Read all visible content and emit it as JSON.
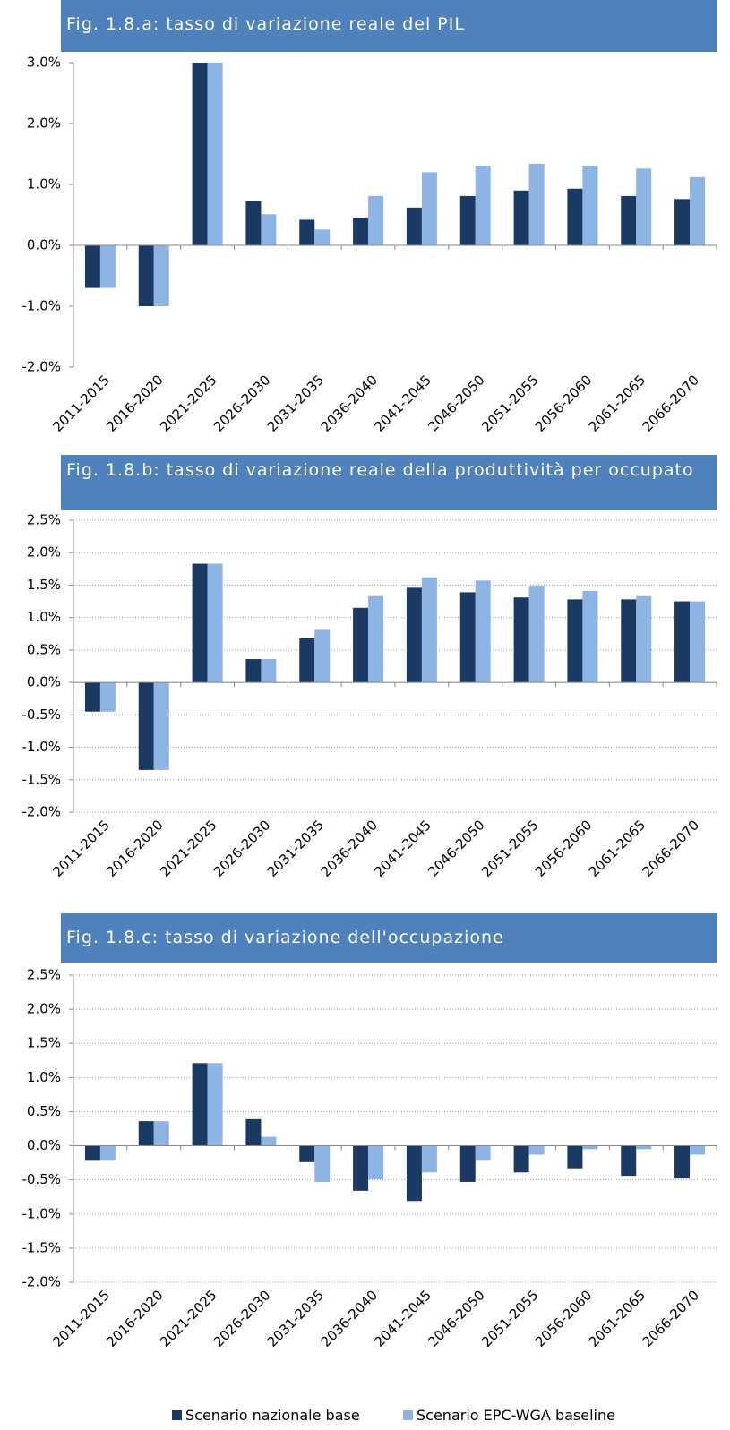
{
  "legend": [
    {
      "name": "Scenario nazionale base",
      "color": "#1b3a63"
    },
    {
      "name": "Scenario EPC-WGA baseline",
      "color": "#8db4e2"
    }
  ],
  "chart_data": [
    {
      "type": "bar",
      "title": "Fig. 1.8.a: tasso di variazione reale del PIL",
      "grid": false,
      "categories": [
        "2011-2015",
        "2016-2020",
        "2021-2025",
        "2026-2030",
        "2031-2035",
        "2036-2040",
        "2041-2045",
        "2046-2050",
        "2051-2055",
        "2056-2060",
        "2061-2065",
        "2066-2070"
      ],
      "series": [
        {
          "values": [
            -0.7,
            -1.0,
            3.0,
            0.73,
            0.42,
            0.45,
            0.62,
            0.81,
            0.9,
            0.93,
            0.81,
            0.76
          ]
        },
        {
          "values": [
            -0.7,
            -1.0,
            3.0,
            0.51,
            0.26,
            0.81,
            1.2,
            1.31,
            1.34,
            1.31,
            1.26,
            1.12
          ]
        }
      ],
      "ylim": [
        -2,
        3
      ],
      "yticks": [
        {
          "value": -2,
          "label": "-2.0%"
        },
        {
          "value": -1,
          "label": "-1.0%"
        },
        {
          "value": 0,
          "label": "0.0%"
        },
        {
          "value": 1,
          "label": "1.0%"
        },
        {
          "value": 2,
          "label": "2.0%"
        },
        {
          "value": 3,
          "label": "3.0%"
        }
      ]
    },
    {
      "type": "bar",
      "title": "Fig. 1.8.b: tasso di variazione reale della produttività per occupato",
      "grid": true,
      "categories": [
        "2011-2015",
        "2016-2020",
        "2021-2025",
        "2026-2030",
        "2031-2035",
        "2036-2040",
        "2041-2045",
        "2046-2050",
        "2051-2055",
        "2056-2060",
        "2061-2065",
        "2066-2070"
      ],
      "series": [
        {
          "values": [
            -0.45,
            -1.35,
            1.83,
            0.36,
            0.68,
            1.15,
            1.46,
            1.39,
            1.31,
            1.28,
            1.28,
            1.25
          ]
        },
        {
          "values": [
            -0.45,
            -1.35,
            1.83,
            0.36,
            0.81,
            1.33,
            1.62,
            1.57,
            1.49,
            1.41,
            1.33,
            1.25
          ]
        }
      ],
      "ylim": [
        -2,
        2.5
      ],
      "yticks": [
        {
          "value": -2,
          "label": "-2.0%"
        },
        {
          "value": -1.5,
          "label": "-1.5%"
        },
        {
          "value": -1,
          "label": "-1.0%"
        },
        {
          "value": -0.5,
          "label": "-0.5%"
        },
        {
          "value": 0,
          "label": "0.0%"
        },
        {
          "value": 0.5,
          "label": "0.5%"
        },
        {
          "value": 1,
          "label": "1.0%"
        },
        {
          "value": 1.5,
          "label": "1.5%"
        },
        {
          "value": 2,
          "label": "2.0%"
        },
        {
          "value": 2.5,
          "label": "2.5%"
        }
      ]
    },
    {
      "type": "bar",
      "title": "Fig. 1.8.c: tasso di variazione dell'occupazione",
      "grid": true,
      "categories": [
        "2011-2015",
        "2016-2020",
        "2021-2025",
        "2026-2030",
        "2031-2035",
        "2036-2040",
        "2041-2045",
        "2046-2050",
        "2051-2055",
        "2056-2060",
        "2061-2065",
        "2066-2070"
      ],
      "series": [
        {
          "values": [
            -0.22,
            0.36,
            1.21,
            0.39,
            -0.24,
            -0.66,
            -0.81,
            -0.53,
            -0.39,
            -0.33,
            -0.44,
            -0.48
          ]
        },
        {
          "values": [
            -0.22,
            0.36,
            1.21,
            0.13,
            -0.53,
            -0.49,
            -0.39,
            -0.22,
            -0.13,
            -0.05,
            -0.05,
            -0.13
          ]
        }
      ],
      "ylim": [
        -2,
        2.5
      ],
      "yticks": [
        {
          "value": -2,
          "label": "-2.0%"
        },
        {
          "value": -1.5,
          "label": "-1.5%"
        },
        {
          "value": -1,
          "label": "-1.0%"
        },
        {
          "value": -0.5,
          "label": "-0.5%"
        },
        {
          "value": 0,
          "label": "0.0%"
        },
        {
          "value": 0.5,
          "label": "0.5%"
        },
        {
          "value": 1,
          "label": "1.0%"
        },
        {
          "value": 1.5,
          "label": "1.5%"
        },
        {
          "value": 2,
          "label": "2.0%"
        },
        {
          "value": 2.5,
          "label": "2.5%"
        }
      ]
    }
  ]
}
